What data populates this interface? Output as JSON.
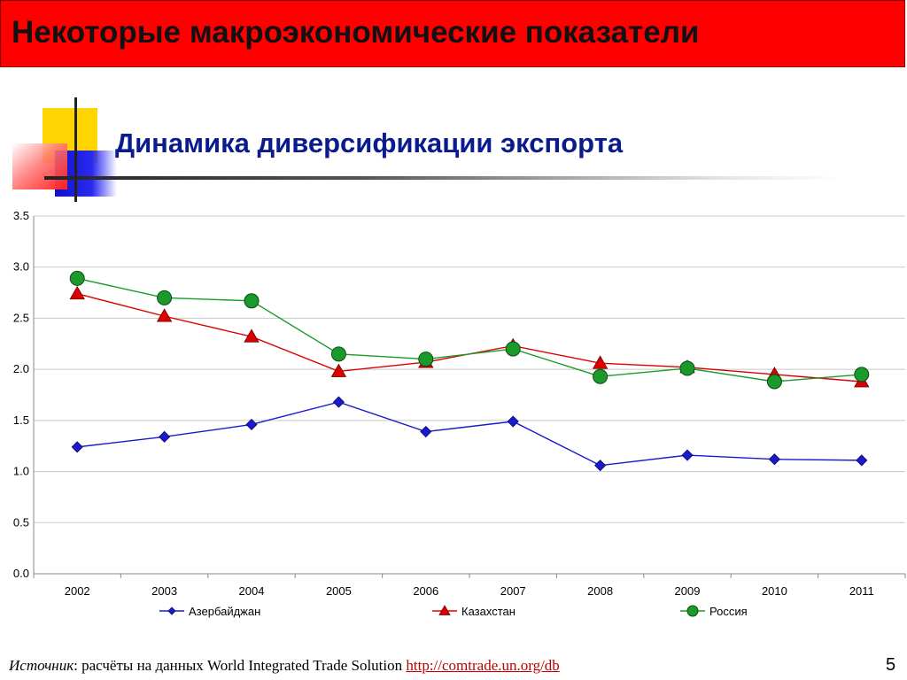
{
  "header": {
    "title": "Некоторые макроэкономические показатели"
  },
  "subtitle": "Динамика диверсификации экспорта",
  "chart_data": {
    "type": "line",
    "x": [
      "2002",
      "2003",
      "2004",
      "2005",
      "2006",
      "2007",
      "2008",
      "2009",
      "2010",
      "2011"
    ],
    "ylim": [
      0,
      3.5
    ],
    "yticks": [
      "0.0",
      "0.5",
      "1.0",
      "1.5",
      "2.0",
      "2.5",
      "3.0",
      "3.5"
    ],
    "grid": true,
    "legend_position": "bottom",
    "series": [
      {
        "name": "Азербайджан",
        "color": "#1a1acc",
        "marker": "diamond",
        "values": [
          1.24,
          1.34,
          1.46,
          1.68,
          1.39,
          1.49,
          1.06,
          1.16,
          1.12,
          1.11
        ]
      },
      {
        "name": "Казахстан",
        "color": "#dd0000",
        "marker": "triangle",
        "values": [
          2.74,
          2.52,
          2.32,
          1.98,
          2.07,
          2.23,
          2.06,
          2.02,
          1.95,
          1.88
        ]
      },
      {
        "name": "Россия",
        "color": "#1a9a2a",
        "marker": "circle",
        "values": [
          2.89,
          2.7,
          2.67,
          2.15,
          2.1,
          2.2,
          1.93,
          2.01,
          1.88,
          1.95
        ]
      }
    ]
  },
  "footer": {
    "source_label": "Источник",
    "source_text": ": расчёты на данных World Integrated Trade Solution ",
    "link": "http://comtrade.un.org/db"
  },
  "page_number": "5"
}
